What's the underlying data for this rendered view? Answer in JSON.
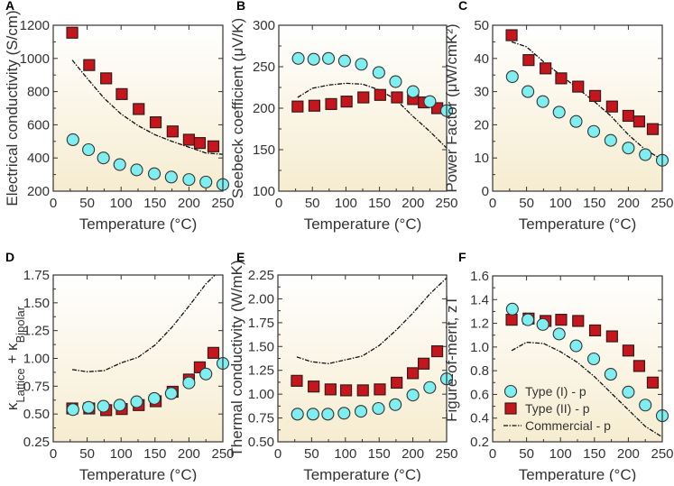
{
  "colors": {
    "type1": "#7eeef0",
    "type2": "#c4161c",
    "commercial": "#111111",
    "bg_top": "#ffffff",
    "bg_bottom": "#f6ecd0"
  },
  "legend": {
    "type1": "Type (I) - p",
    "type2": "Type (II) - p",
    "commercial": "Commercial - p"
  },
  "chart_data": [
    {
      "id": "A",
      "type": "scatter",
      "panel_label": "A",
      "xlabel": "Temperature (°C)",
      "ylabel": "Electrical conductivity (S/cm)",
      "xlim": [
        0,
        250
      ],
      "ylim": [
        200,
        1200
      ],
      "xticks": [
        0,
        50,
        100,
        150,
        200,
        250
      ],
      "yticks": [
        200,
        400,
        600,
        800,
        1000,
        1200
      ],
      "series": [
        {
          "name": "Type (I) - p",
          "marker": "circle",
          "x": [
            29,
            52,
            74,
            98,
            123,
            149,
            174,
            200,
            225,
            250
          ],
          "y": [
            510,
            450,
            400,
            360,
            328,
            305,
            285,
            270,
            255,
            240
          ]
        },
        {
          "name": "Type (II) - p",
          "marker": "square",
          "x": [
            28,
            53,
            78,
            101,
            126,
            151,
            176,
            200,
            216,
            236
          ],
          "y": [
            1155,
            960,
            880,
            785,
            695,
            615,
            560,
            510,
            490,
            470
          ]
        },
        {
          "name": "Commercial - p",
          "marker": "dashdot-line",
          "x": [
            28,
            50,
            75,
            100,
            125,
            150,
            175,
            200,
            225,
            250
          ],
          "y": [
            990,
            880,
            760,
            665,
            595,
            540,
            500,
            465,
            430,
            422
          ]
        }
      ]
    },
    {
      "id": "B",
      "type": "scatter",
      "panel_label": "B",
      "xlabel": "Temperature (°C)",
      "ylabel": "Seebeck coefficient (μV/K)",
      "xlim": [
        0,
        250
      ],
      "ylim": [
        100,
        300
      ],
      "xticks": [
        0,
        50,
        100,
        150,
        200,
        250
      ],
      "yticks": [
        100,
        150,
        200,
        250,
        300
      ],
      "series": [
        {
          "name": "Type (I) - p",
          "marker": "circle",
          "x": [
            29,
            52,
            74,
            98,
            123,
            149,
            174,
            200,
            225,
            250
          ],
          "y": [
            260,
            259,
            260,
            257,
            253,
            243,
            232,
            220,
            208,
            197
          ]
        },
        {
          "name": "Type (II) - p",
          "marker": "square",
          "x": [
            28,
            53,
            78,
            101,
            126,
            151,
            176,
            200,
            216,
            236
          ],
          "y": [
            202,
            203,
            205,
            208,
            213,
            216,
            213,
            211,
            207,
            200
          ]
        },
        {
          "name": "Commercial - p",
          "marker": "dashdot-line",
          "x": [
            28,
            50,
            75,
            100,
            125,
            150,
            175,
            200,
            225,
            250
          ],
          "y": [
            213,
            224,
            228,
            230,
            229,
            222,
            210,
            190,
            172,
            152
          ]
        }
      ]
    },
    {
      "id": "C",
      "type": "scatter",
      "panel_label": "C",
      "xlabel": "Temperature (°C)",
      "ylabel": "Power Factor (μW/cmK²)",
      "xlim": [
        0,
        250
      ],
      "ylim": [
        0,
        50
      ],
      "xticks": [
        0,
        50,
        100,
        150,
        200,
        250
      ],
      "yticks": [
        0,
        10,
        20,
        30,
        40,
        50
      ],
      "series": [
        {
          "name": "Type (I) - p",
          "marker": "circle",
          "x": [
            29,
            52,
            74,
            98,
            123,
            149,
            174,
            200,
            225,
            250
          ],
          "y": [
            34.5,
            30,
            27,
            23.8,
            21,
            18,
            15.3,
            13,
            11,
            9.3
          ]
        },
        {
          "name": "Type (II) - p",
          "marker": "square",
          "x": [
            28,
            53,
            78,
            101,
            126,
            151,
            176,
            200,
            216,
            236
          ],
          "y": [
            47,
            39.5,
            37,
            34,
            31.5,
            28.7,
            25.5,
            22.7,
            21,
            18.7
          ]
        },
        {
          "name": "Commercial - p",
          "marker": "dashdot-line",
          "x": [
            28,
            50,
            75,
            100,
            125,
            150,
            175,
            200,
            225,
            250
          ],
          "y": [
            45,
            43.5,
            39,
            35,
            31,
            27,
            22.5,
            17,
            12.5,
            9.5
          ]
        }
      ]
    },
    {
      "id": "D",
      "type": "scatter",
      "panel_label": "D",
      "xlabel": "Temperature (°C)",
      "ylabel": "κLattice + κBipolar",
      "ylabel_parts": {
        "k1": "κ",
        "sub1": "Lattice",
        "plus": " + ",
        "k2": "κ",
        "sub2": "Bipolar"
      },
      "xlim": [
        0,
        250
      ],
      "ylim": [
        0.25,
        1.75
      ],
      "xticks": [
        0,
        50,
        100,
        150,
        200,
        250
      ],
      "yticks": [
        0.25,
        0.5,
        0.75,
        1.0,
        1.25,
        1.5,
        1.75
      ],
      "series": [
        {
          "name": "Type (I) - p",
          "marker": "circle",
          "x": [
            29,
            52,
            74,
            98,
            123,
            149,
            174,
            200,
            225,
            250
          ],
          "y": [
            0.54,
            0.56,
            0.57,
            0.58,
            0.61,
            0.64,
            0.685,
            0.78,
            0.86,
            0.955
          ]
        },
        {
          "name": "Type (II) - p",
          "marker": "square",
          "x": [
            28,
            53,
            78,
            101,
            126,
            151,
            176,
            200,
            216,
            236
          ],
          "y": [
            0.55,
            0.55,
            0.535,
            0.545,
            0.58,
            0.615,
            0.7,
            0.81,
            0.92,
            1.05
          ]
        },
        {
          "name": "Commercial - p",
          "marker": "dashdot-line",
          "x": [
            28,
            50,
            75,
            100,
            125,
            150,
            175,
            200,
            225,
            240
          ],
          "y": [
            0.9,
            0.88,
            0.89,
            0.96,
            1.01,
            1.12,
            1.28,
            1.47,
            1.67,
            1.76
          ]
        }
      ]
    },
    {
      "id": "E",
      "type": "scatter",
      "panel_label": "E",
      "xlabel": "Temperature (°C)",
      "ylabel": "Thermal conductivity (W/mK)",
      "xlim": [
        0,
        250
      ],
      "ylim": [
        0.5,
        2.25
      ],
      "xticks": [
        0,
        50,
        100,
        150,
        200,
        250
      ],
      "yticks": [
        0.5,
        0.75,
        1.0,
        1.25,
        1.5,
        1.75,
        2.0,
        2.25
      ],
      "series": [
        {
          "name": "Type (I) - p",
          "marker": "circle",
          "x": [
            29,
            52,
            74,
            98,
            123,
            149,
            174,
            200,
            225,
            250
          ],
          "y": [
            0.79,
            0.79,
            0.79,
            0.8,
            0.82,
            0.85,
            0.89,
            0.99,
            1.07,
            1.16
          ]
        },
        {
          "name": "Type (II) - p",
          "marker": "square",
          "x": [
            28,
            53,
            78,
            101,
            126,
            151,
            176,
            200,
            216,
            236
          ],
          "y": [
            1.14,
            1.08,
            1.05,
            1.04,
            1.04,
            1.05,
            1.12,
            1.22,
            1.32,
            1.45
          ]
        },
        {
          "name": "Commercial - p",
          "marker": "dashdot-line",
          "x": [
            28,
            50,
            75,
            100,
            125,
            150,
            175,
            200,
            225,
            250
          ],
          "y": [
            1.39,
            1.34,
            1.32,
            1.36,
            1.4,
            1.51,
            1.67,
            1.85,
            2.05,
            2.22
          ]
        }
      ]
    },
    {
      "id": "F",
      "type": "scatter",
      "panel_label": "F",
      "xlabel": "Temperature (°C)",
      "ylabel": "Figure-of-merit, zT",
      "legend": "lower-left",
      "xlim": [
        0,
        250
      ],
      "ylim": [
        0.2,
        1.6
      ],
      "xticks": [
        0,
        50,
        100,
        150,
        200,
        250
      ],
      "yticks": [
        0.2,
        0.4,
        0.6,
        0.8,
        1.0,
        1.2,
        1.4,
        1.6
      ],
      "series": [
        {
          "name": "Type (I) - p",
          "marker": "circle",
          "x": [
            29,
            52,
            74,
            98,
            123,
            149,
            174,
            200,
            225,
            250
          ],
          "y": [
            1.32,
            1.23,
            1.19,
            1.11,
            1.01,
            0.9,
            0.77,
            0.62,
            0.51,
            0.42
          ]
        },
        {
          "name": "Type (II) - p",
          "marker": "square",
          "x": [
            28,
            53,
            78,
            101,
            126,
            151,
            176,
            200,
            216,
            236
          ],
          "y": [
            1.23,
            1.24,
            1.22,
            1.23,
            1.22,
            1.14,
            1.09,
            0.97,
            0.84,
            0.7
          ]
        },
        {
          "name": "Commercial - p",
          "marker": "dashdot-line",
          "x": [
            28,
            50,
            75,
            100,
            125,
            150,
            175,
            200,
            225,
            250
          ],
          "y": [
            0.97,
            1.04,
            1.03,
            0.96,
            0.87,
            0.75,
            0.61,
            0.47,
            0.33,
            0.24
          ]
        }
      ]
    }
  ]
}
